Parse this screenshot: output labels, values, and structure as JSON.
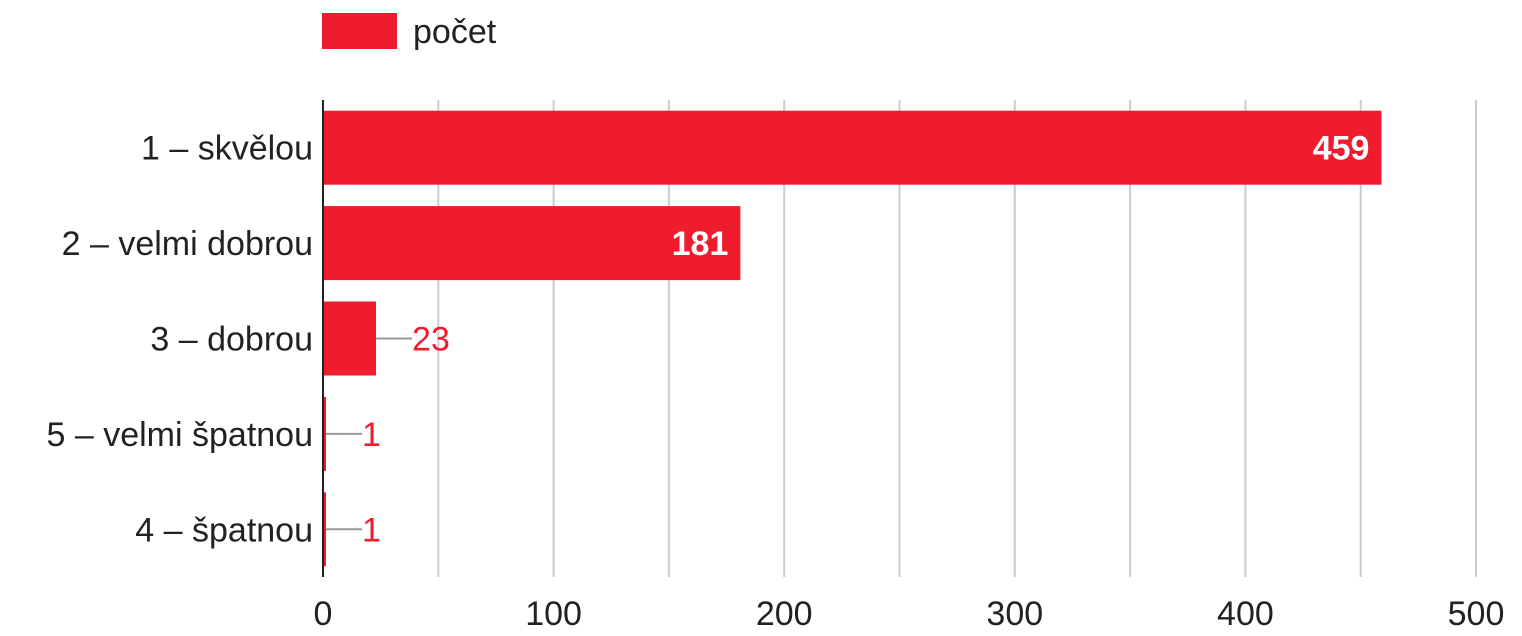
{
  "chart_data": {
    "type": "bar",
    "orientation": "horizontal",
    "categories": [
      "1 – skvělou",
      "2 – velmi dobrou",
      "3 – dobrou",
      "5 – velmi špatnou",
      "4 – špatnou"
    ],
    "series": [
      {
        "name": "počet",
        "values": [
          459,
          181,
          23,
          1,
          1
        ]
      }
    ],
    "xlim": [
      0,
      500
    ],
    "x_ticks": [
      0,
      100,
      200,
      300,
      400,
      500
    ],
    "grid": true,
    "grid_step": 50,
    "legend": "top-left",
    "title": "",
    "xlabel": "",
    "ylabel": "",
    "colors": {
      "bar": "#ef1c2e",
      "grid": "#cccccc",
      "axis": "#222222",
      "leader": "#999999"
    }
  }
}
